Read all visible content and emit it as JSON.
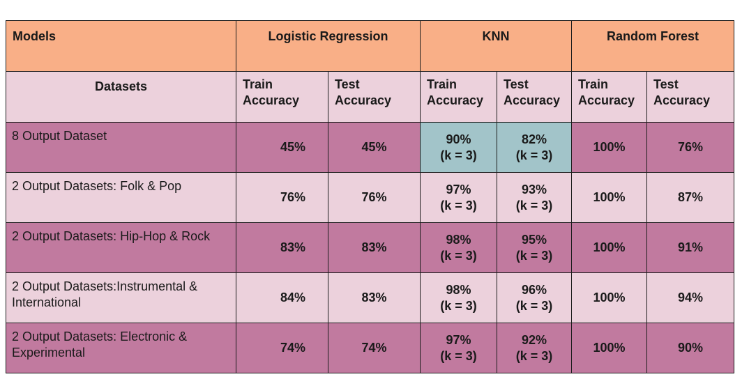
{
  "chart_data": {
    "type": "table",
    "header": {
      "models_label": "Models",
      "datasets_label": "Datasets",
      "models": [
        "Logistic Regression",
        "KNN",
        "Random Forest"
      ],
      "metric_labels": {
        "train": [
          "Train",
          "Accuracy"
        ],
        "test": [
          "Test",
          "Accuracy"
        ]
      }
    },
    "rows": [
      {
        "dataset": "8 Output Dataset",
        "lr_train": "45%",
        "lr_test": "45%",
        "knn_train": "90%",
        "knn_train_k": "(k = 3)",
        "knn_test": "82%",
        "knn_test_k": "(k = 3)",
        "rf_train": "100%",
        "rf_test": "76%"
      },
      {
        "dataset": "2 Output Datasets: Folk & Pop",
        "lr_train": "76%",
        "lr_test": "76%",
        "knn_train": "97%",
        "knn_train_k": "(k = 3)",
        "knn_test": "93%",
        "knn_test_k": "(k = 3)",
        "rf_train": "100%",
        "rf_test": "87%"
      },
      {
        "dataset": "2 Output Datasets: Hip-Hop & Rock",
        "lr_train": "83%",
        "lr_test": "83%",
        "knn_train": "98%",
        "knn_train_k": "(k = 3)",
        "knn_test": "95%",
        "knn_test_k": "(k = 3)",
        "rf_train": "100%",
        "rf_test": "91%"
      },
      {
        "dataset": "2 Output Datasets:Instrumental & International",
        "lr_train": "84%",
        "lr_test": "83%",
        "knn_train": "98%",
        "knn_train_k": "(k = 3)",
        "knn_test": "96%",
        "knn_test_k": "(k = 3)",
        "rf_train": "100%",
        "rf_test": "94%"
      },
      {
        "dataset": "2 Output Datasets: Electronic & Experimental",
        "lr_train": "74%",
        "lr_test": "74%",
        "knn_train": "97%",
        "knn_train_k": "(k = 3)",
        "knn_test": "92%",
        "knn_test_k": "(k = 3)",
        "rf_train": "100%",
        "rf_test": "90%"
      }
    ],
    "colors": {
      "header": "#f9af87",
      "light_row": "#ecd1dc",
      "dark_row": "#c17a9f",
      "highlight": "#a2c4c9"
    }
  }
}
